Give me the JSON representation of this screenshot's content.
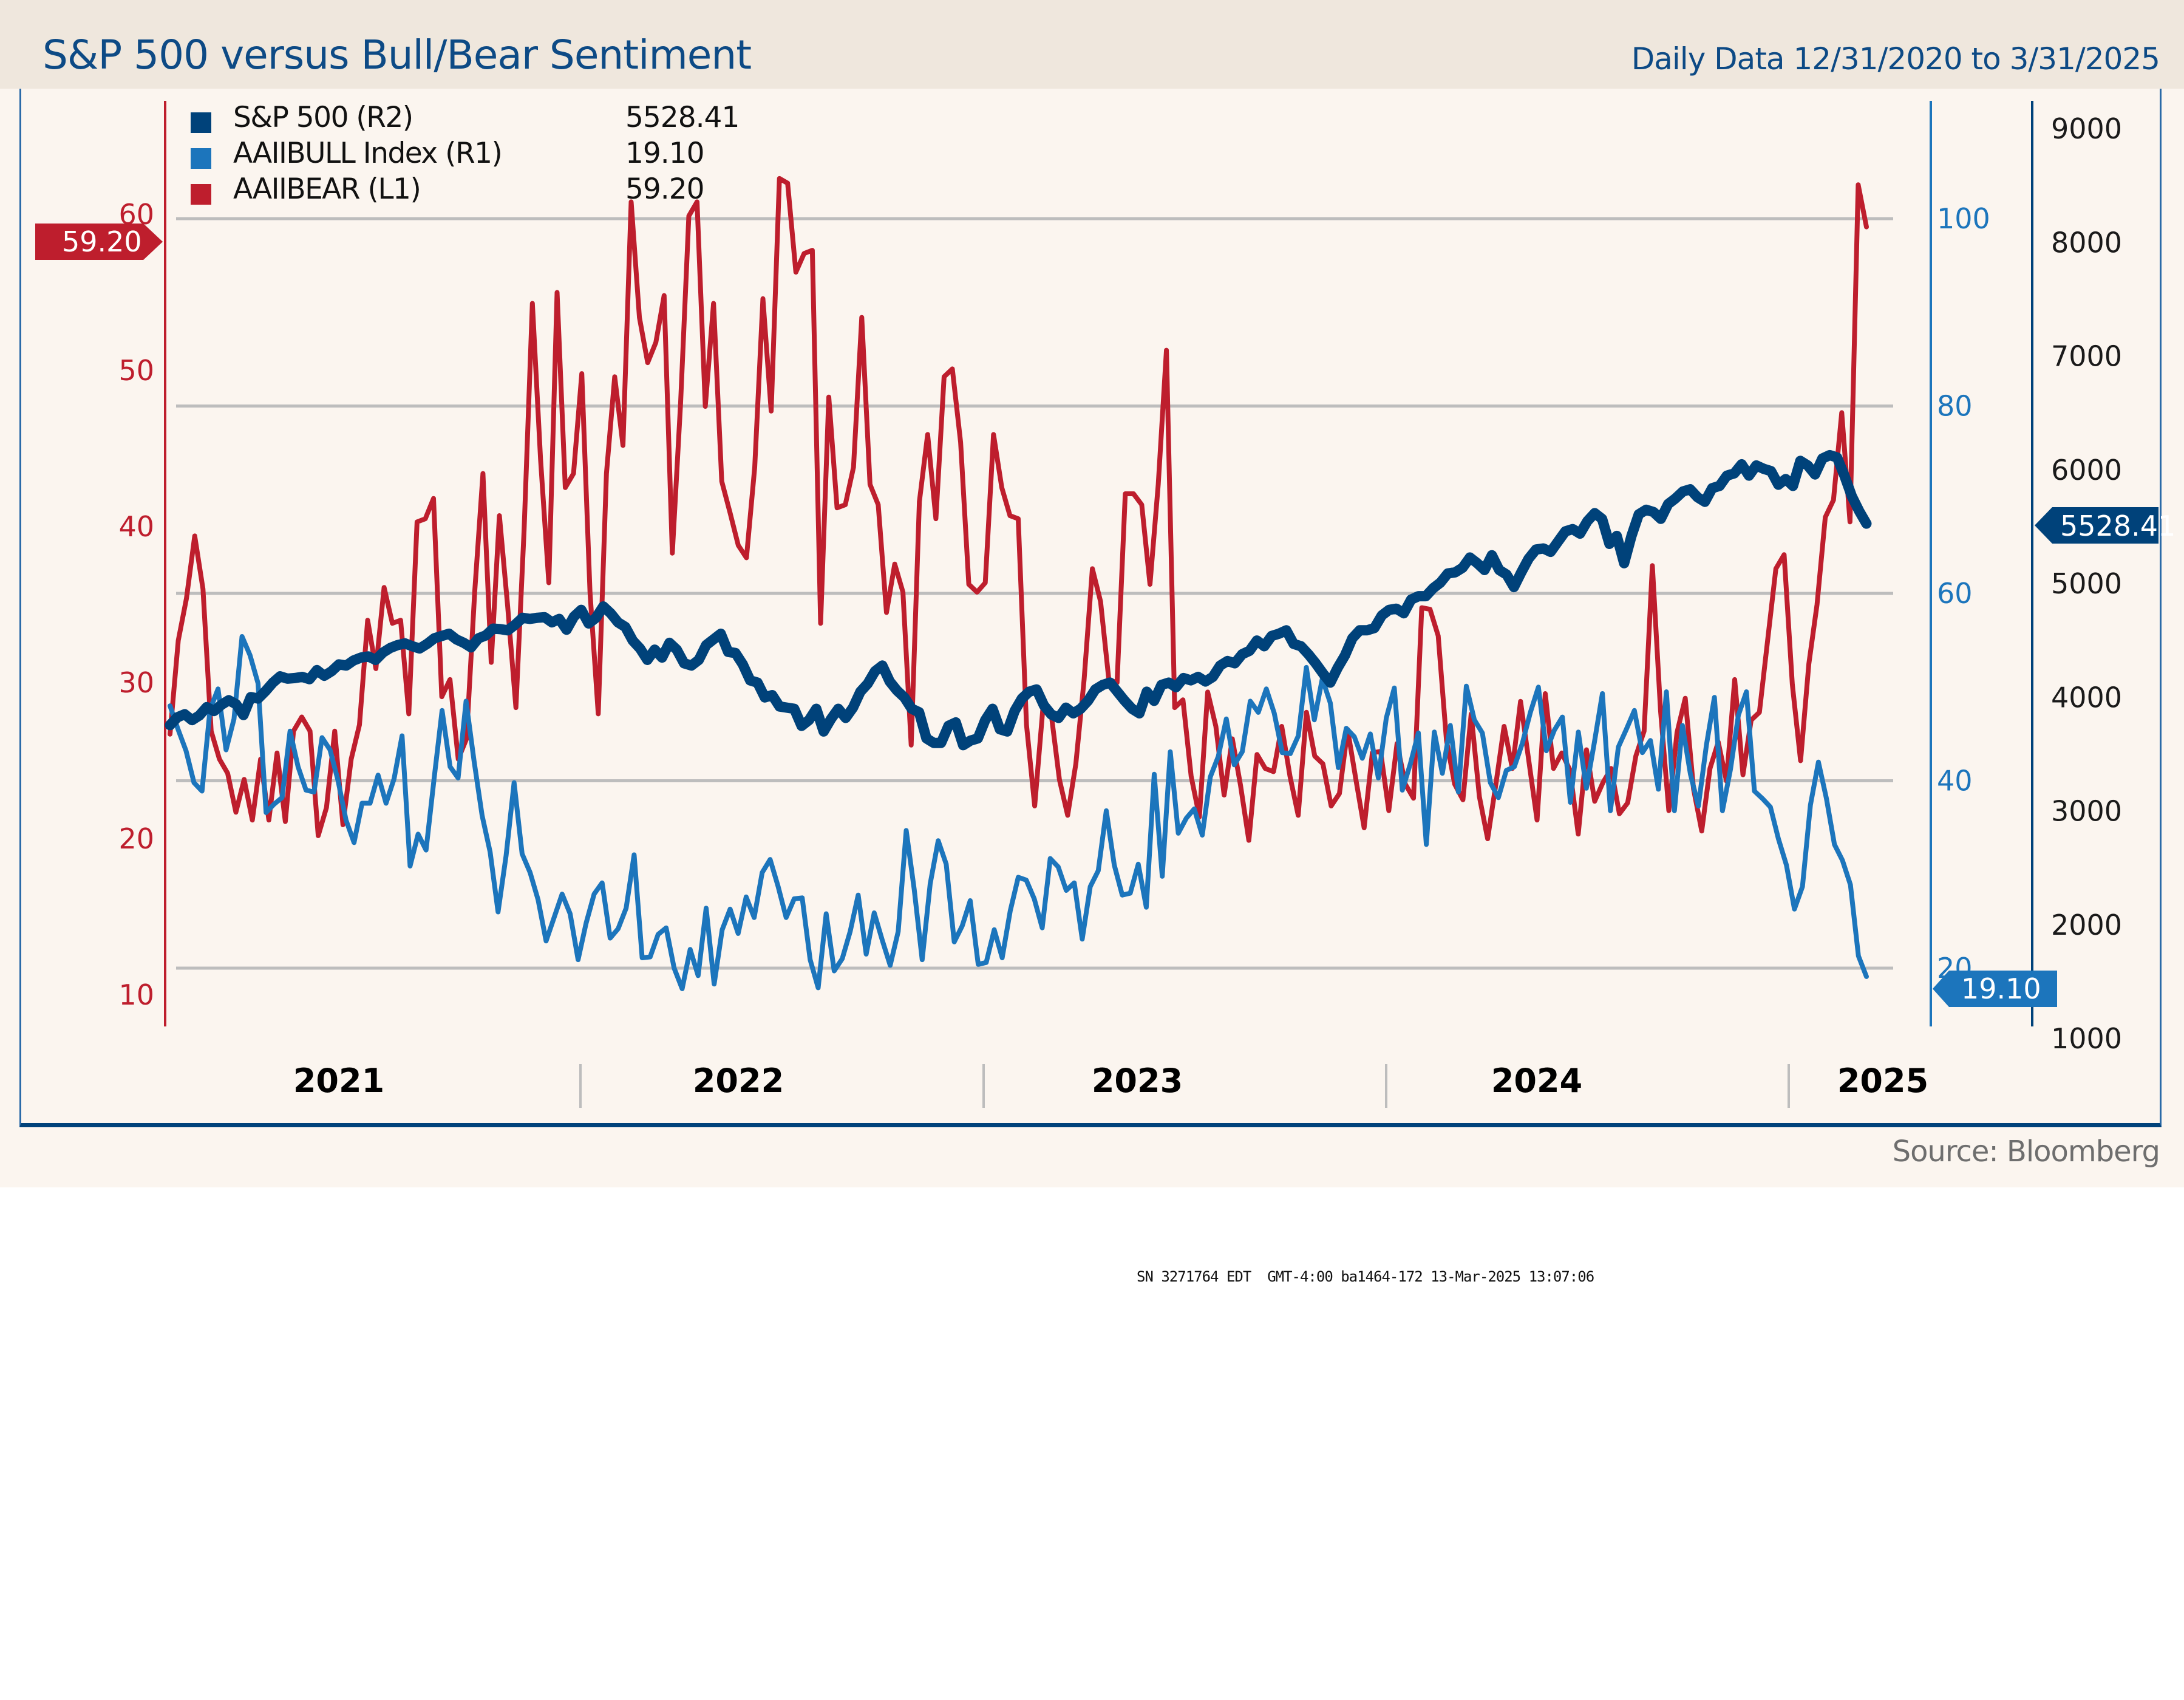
{
  "header": {
    "title": "S&P 500 versus Bull/Bear Sentiment",
    "subtitle": "Daily Data 12/31/2020 to 3/31/2025"
  },
  "legend": [
    {
      "label": "S&P 500 (R2)",
      "value": "5528.41",
      "color": "#00427a"
    },
    {
      "label": "AAIIBULL Index (R1)",
      "value": "19.10",
      "color": "#1c75bc"
    },
    {
      "label": "AAIIBEAR (L1)",
      "value": "59.20",
      "color": "#be1e2d"
    }
  ],
  "callouts": {
    "bear": "59.20",
    "bull": "19.10",
    "spx": "5528.41"
  },
  "footer": {
    "source": "Source: Bloomberg",
    "stamp": "SN 3271764 EDT  GMT-4:00 ba1464-172 13-Mar-2025 13:07:06"
  },
  "colors": {
    "spx": "#00427a",
    "bull": "#1c75bc",
    "bear": "#be1e2d",
    "grid": "#bdbdbd",
    "title": "#0d4a85"
  },
  "chart_data": {
    "type": "line",
    "title": "S&P 500 versus Bull/Bear Sentiment",
    "subtitle": "Daily Data 12/31/2020 to 3/31/2025",
    "x_start": "2020-12-31",
    "x_end": "2025-03-31",
    "x_tick_labels": [
      "2021",
      "2022",
      "2023",
      "2024",
      "2025"
    ],
    "grid": true,
    "legend_position": "top-left",
    "axes": {
      "L1": {
        "label": "AAIIBEAR",
        "ticks": [
          10,
          20,
          30,
          40,
          50,
          60
        ],
        "range": [
          7.5,
          63.5
        ]
      },
      "R1": {
        "label": "AAIIBULL",
        "ticks": [
          20,
          40,
          60,
          80,
          100
        ],
        "range": [
          13.8,
          112
        ]
      },
      "R2": {
        "label": "S&P 500",
        "ticks": [
          1000,
          2000,
          3000,
          4000,
          5000,
          6000,
          7000,
          8000,
          9000
        ],
        "range": [
          1000,
          9600
        ]
      }
    },
    "series": [
      {
        "name": "AAIIBEAR (L1)",
        "axis": "L1",
        "last": 59.2,
        "values": [
          26.7,
          32.7,
          35.4,
          39.4,
          36.0,
          26.9,
          25.1,
          24.2,
          21.7,
          23.8,
          21.2,
          25.1,
          21.2,
          25.5,
          21.1,
          26.9,
          27.8,
          26.9,
          20.2,
          22.0,
          26.9,
          20.9,
          25.1,
          27.3,
          34.0,
          30.9,
          36.1,
          33.8,
          34.0,
          28.0,
          40.3,
          40.5,
          41.8,
          29.1,
          30.2,
          25.1,
          26.4,
          35.8,
          43.4,
          31.3,
          40.7,
          34.9,
          28.4,
          39.8,
          54.3,
          44.3,
          36.4,
          55.0,
          42.5,
          43.4,
          49.8,
          35.8,
          28.0,
          43.4,
          49.6,
          45.2,
          60.8,
          53.4,
          50.5,
          51.8,
          54.8,
          38.3,
          47.9,
          59.9,
          60.8,
          47.7,
          54.3,
          42.9,
          40.9,
          38.8,
          38.0,
          43.8,
          54.6,
          47.4,
          62.3,
          62.0,
          56.3,
          57.5,
          57.7,
          33.8,
          48.3,
          41.2,
          41.4,
          43.8,
          53.4,
          42.7,
          41.4,
          34.5,
          37.6,
          35.8,
          26.0,
          41.6,
          45.9,
          40.5,
          49.6,
          50.1,
          45.4,
          36.3,
          35.8,
          36.4,
          45.9,
          42.5,
          40.7,
          40.5,
          27.3,
          22.1,
          28.4,
          28.0,
          23.8,
          21.5,
          24.8,
          30.2,
          37.3,
          35.2,
          30.2,
          30.0,
          42.1,
          42.1,
          41.4,
          36.3,
          42.7,
          51.3,
          28.4,
          28.9,
          24.0,
          21.4,
          29.4,
          27.2,
          22.8,
          26.4,
          23.4,
          19.9,
          25.4,
          24.5,
          24.3,
          27.2,
          24.0,
          21.5,
          28.1,
          25.3,
          24.8,
          22.1,
          22.9,
          27.0,
          23.8,
          20.7,
          25.5,
          25.6,
          21.8,
          26.1,
          23.5,
          22.6,
          34.8,
          34.7,
          33.0,
          26.3,
          23.5,
          22.5,
          28.0,
          22.7,
          20.0,
          23.5,
          27.2,
          24.5,
          28.8,
          25.0,
          21.2,
          29.3,
          24.5,
          25.5,
          24.4,
          20.3,
          25.7,
          22.4,
          23.6,
          24.5,
          21.6,
          22.3,
          25.3,
          26.9,
          37.5,
          28.2,
          21.8,
          26.8,
          29.0,
          23.2,
          20.5,
          24.5,
          26.2,
          23.7,
          30.2,
          24.1,
          27.6,
          28.1,
          32.7,
          37.3,
          38.2,
          29.9,
          25.0,
          31.2,
          35.0,
          40.6,
          41.7,
          47.3,
          40.3,
          61.9,
          59.2
        ],
        "note": "approximate weekly readings traced from the chart"
      },
      {
        "name": "AAIIBULL Index (R1)",
        "axis": "R1",
        "last": 19.1,
        "values": [
          48.0,
          45.5,
          43.2,
          39.8,
          38.9,
          47.6,
          49.8,
          43.3,
          46.6,
          55.4,
          53.4,
          50.4,
          36.6,
          37.5,
          38.2,
          45.3,
          41.5,
          39.0,
          38.8,
          44.6,
          43.3,
          40.0,
          35.8,
          33.4,
          37.6,
          37.6,
          40.6,
          37.6,
          40.2,
          44.8,
          30.9,
          34.3,
          32.6,
          40.2,
          47.5,
          41.5,
          40.3,
          48.5,
          42.1,
          36.3,
          32.4,
          26.0,
          32.0,
          39.8,
          32.2,
          30.2,
          27.3,
          22.9,
          25.4,
          27.9,
          25.8,
          20.9,
          24.8,
          27.9,
          29.1,
          23.2,
          24.2,
          26.4,
          32.1,
          21.1,
          21.2,
          23.6,
          24.3,
          20.0,
          17.8,
          22.0,
          19.2,
          26.4,
          18.3,
          24.1,
          26.3,
          23.7,
          27.6,
          25.4,
          30.2,
          31.6,
          28.7,
          25.4,
          27.4,
          27.5,
          20.9,
          17.9,
          25.8,
          19.7,
          21.0,
          23.9,
          27.8,
          21.5,
          25.9,
          23.0,
          20.3,
          23.9,
          34.7,
          28.4,
          20.9,
          29.0,
          33.6,
          31.1,
          22.8,
          24.5,
          27.2,
          20.4,
          20.6,
          24.1,
          21.1,
          26.1,
          29.7,
          29.4,
          27.4,
          24.3,
          31.7,
          30.8,
          28.3,
          29.1,
          23.1,
          28.7,
          30.4,
          36.8,
          31.0,
          27.8,
          28.0,
          31.1,
          26.5,
          40.7,
          29.8,
          43.1,
          34.4,
          36.0,
          37.0,
          34.2,
          40.4,
          42.6,
          46.6,
          41.7,
          43.1,
          48.5,
          47.3,
          49.8,
          47.2,
          43.0,
          42.9,
          44.8,
          52.1,
          46.5,
          50.9,
          48.3,
          41.4,
          45.6,
          44.7,
          42.4,
          45.0,
          40.3,
          46.7,
          49.9,
          39.0,
          41.8,
          45.1,
          33.2,
          45.2,
          40.8,
          45.9,
          38.8,
          50.1,
          46.5,
          45.1,
          39.8,
          38.2,
          41.1,
          41.5,
          44.0,
          47.3,
          50.0,
          43.2,
          45.4,
          46.8,
          37.7,
          45.2,
          39.2,
          44.1,
          49.3,
          36.8,
          43.6,
          45.5,
          47.5,
          43.0,
          44.3,
          39.1,
          49.5,
          36.8,
          45.9,
          40.7,
          37.3,
          43.8,
          48.9,
          36.8,
          41.2,
          47.0,
          49.5,
          38.9,
          38.1,
          37.2,
          33.8,
          31.0,
          26.3,
          28.7,
          37.4,
          42.0,
          38.1,
          33.2,
          31.5,
          28.9,
          21.3,
          19.1
        ],
        "note": "approximate weekly readings traced from the chart"
      },
      {
        "name": "S&P 500 (R2)",
        "axis": "R2",
        "last": 5528.41,
        "values": [
          3756,
          3825,
          3852,
          3800,
          3841,
          3915,
          3880,
          3935,
          3975,
          3940,
          3845,
          4003,
          3990,
          4055,
          4129,
          4185,
          4165,
          4170,
          4180,
          4160,
          4240,
          4190,
          4230,
          4290,
          4280,
          4325,
          4350,
          4360,
          4330,
          4395,
          4435,
          4460,
          4475,
          4450,
          4430,
          4470,
          4520,
          4540,
          4560,
          4510,
          4480,
          4440,
          4520,
          4545,
          4605,
          4600,
          4590,
          4640,
          4700,
          4690,
          4700,
          4705,
          4660,
          4690,
          4595,
          4710,
          4770,
          4650,
          4700,
          4800,
          4740,
          4660,
          4620,
          4500,
          4430,
          4330,
          4420,
          4350,
          4480,
          4420,
          4300,
          4280,
          4330,
          4460,
          4510,
          4560,
          4400,
          4390,
          4290,
          4150,
          4130,
          4000,
          4020,
          3920,
          3910,
          3900,
          3750,
          3800,
          3900,
          3700,
          3810,
          3900,
          3820,
          3910,
          4050,
          4120,
          4230,
          4280,
          4140,
          4060,
          4000,
          3900,
          3870,
          3640,
          3600,
          3600,
          3750,
          3780,
          3580,
          3620,
          3640,
          3800,
          3900,
          3720,
          3700,
          3880,
          3990,
          4050,
          4070,
          3930,
          3850,
          3820,
          3910,
          3860,
          3900,
          3970,
          4070,
          4110,
          4130,
          4050,
          3970,
          3900,
          3860,
          4050,
          3970,
          4110,
          4130,
          4090,
          4170,
          4150,
          4180,
          4140,
          4180,
          4280,
          4320,
          4300,
          4380,
          4410,
          4500,
          4450,
          4540,
          4560,
          4590,
          4470,
          4450,
          4380,
          4300,
          4210,
          4130,
          4260,
          4370,
          4520,
          4590,
          4590,
          4610,
          4720,
          4770,
          4780,
          4740,
          4860,
          4890,
          4890,
          4960,
          5010,
          5090,
          5100,
          5140,
          5230,
          5180,
          5120,
          5250,
          5120,
          5080,
          4970,
          5100,
          5220,
          5300,
          5310,
          5280,
          5370,
          5460,
          5480,
          5440,
          5550,
          5620,
          5570,
          5350,
          5420,
          5180,
          5420,
          5610,
          5650,
          5630,
          5570,
          5700,
          5750,
          5810,
          5830,
          5760,
          5720,
          5840,
          5860,
          5950,
          5970,
          6050,
          5950,
          6040,
          6010,
          5990,
          5870,
          5920,
          5860,
          6080,
          6040,
          5960,
          6100,
          6130,
          6110,
          5950,
          5770,
          5640,
          5528.41
        ],
        "note": "approximate weekly readings traced from the chart"
      }
    ]
  }
}
